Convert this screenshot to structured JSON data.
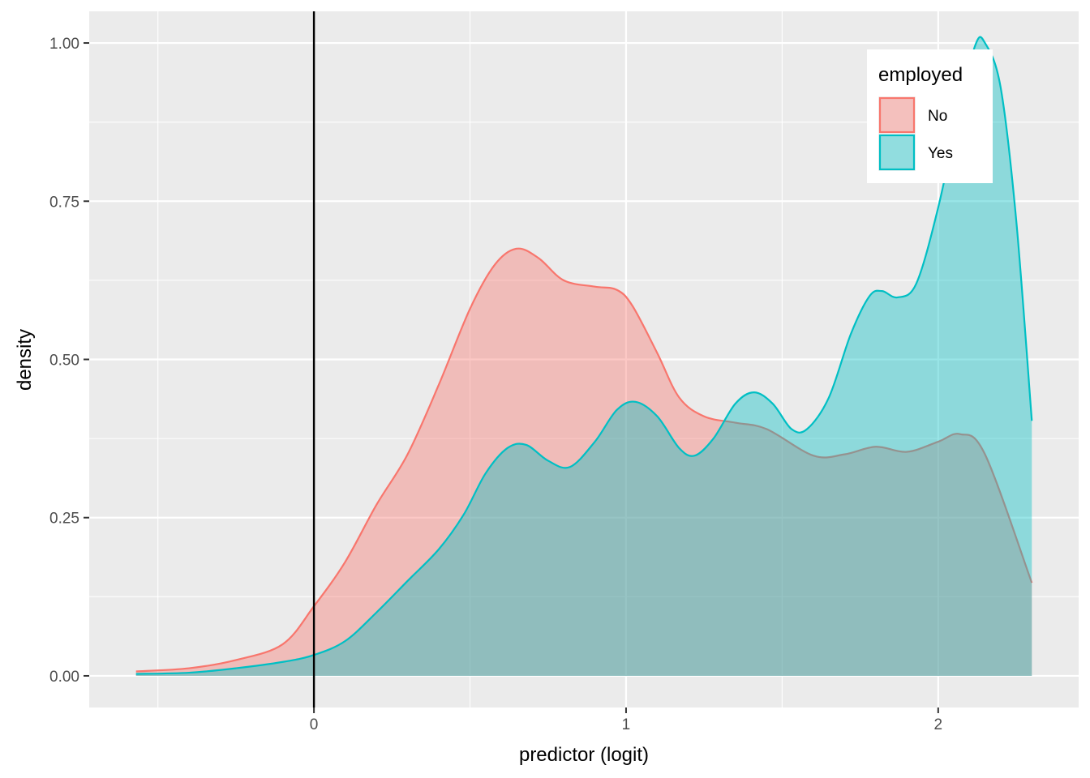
{
  "chart_data": {
    "type": "area",
    "chart_kind": "density",
    "xlabel": "predictor (logit)",
    "ylabel": "density",
    "xlim": [
      -0.72,
      2.45
    ],
    "ylim": [
      -0.05,
      1.05
    ],
    "x_ticks": [
      {
        "value": 0,
        "label": "0"
      },
      {
        "value": 1,
        "label": "1"
      },
      {
        "value": 2,
        "label": "2"
      }
    ],
    "x_minor_ticks": [
      -0.5,
      0.5,
      1.5
    ],
    "y_ticks": [
      {
        "value": 0,
        "label": "0.00"
      },
      {
        "value": 0.25,
        "label": "0.25"
      },
      {
        "value": 0.5,
        "label": "0.50"
      },
      {
        "value": 0.75,
        "label": "0.75"
      },
      {
        "value": 1.0,
        "label": "1.00"
      }
    ],
    "y_minor_ticks": [
      0.125,
      0.375,
      0.625,
      0.875
    ],
    "grid": true,
    "reference_line": {
      "x": 0,
      "color": "#000000"
    },
    "legend": {
      "title": "employed",
      "position": "top-right"
    },
    "series": [
      {
        "name": "No",
        "color": "#F8766D",
        "fill": "#F8766D",
        "fill_opacity": 0.4,
        "points": [
          [
            -0.57,
            0.007
          ],
          [
            -0.4,
            0.012
          ],
          [
            -0.25,
            0.025
          ],
          [
            -0.1,
            0.05
          ],
          [
            0,
            0.11
          ],
          [
            0.1,
            0.18
          ],
          [
            0.2,
            0.27
          ],
          [
            0.3,
            0.35
          ],
          [
            0.4,
            0.46
          ],
          [
            0.5,
            0.58
          ],
          [
            0.58,
            0.65
          ],
          [
            0.65,
            0.675
          ],
          [
            0.72,
            0.66
          ],
          [
            0.8,
            0.625
          ],
          [
            0.9,
            0.615
          ],
          [
            0.97,
            0.61
          ],
          [
            1.02,
            0.585
          ],
          [
            1.1,
            0.51
          ],
          [
            1.17,
            0.44
          ],
          [
            1.25,
            0.41
          ],
          [
            1.35,
            0.4
          ],
          [
            1.45,
            0.39
          ],
          [
            1.6,
            0.348
          ],
          [
            1.7,
            0.35
          ],
          [
            1.8,
            0.362
          ],
          [
            1.9,
            0.354
          ],
          [
            2.0,
            0.37
          ],
          [
            2.07,
            0.382
          ],
          [
            2.15,
            0.35
          ],
          [
            2.3,
            0.147
          ]
        ]
      },
      {
        "name": "Yes",
        "color": "#00BFC4",
        "fill": "#00BFC4",
        "fill_opacity": 0.4,
        "points": [
          [
            -0.57,
            0.003
          ],
          [
            -0.4,
            0.005
          ],
          [
            -0.25,
            0.012
          ],
          [
            -0.1,
            0.022
          ],
          [
            0,
            0.033
          ],
          [
            0.1,
            0.055
          ],
          [
            0.2,
            0.1
          ],
          [
            0.3,
            0.15
          ],
          [
            0.4,
            0.2
          ],
          [
            0.48,
            0.255
          ],
          [
            0.55,
            0.32
          ],
          [
            0.62,
            0.36
          ],
          [
            0.68,
            0.365
          ],
          [
            0.75,
            0.34
          ],
          [
            0.82,
            0.33
          ],
          [
            0.9,
            0.37
          ],
          [
            0.97,
            0.42
          ],
          [
            1.03,
            0.433
          ],
          [
            1.1,
            0.41
          ],
          [
            1.17,
            0.36
          ],
          [
            1.22,
            0.348
          ],
          [
            1.28,
            0.375
          ],
          [
            1.35,
            0.43
          ],
          [
            1.41,
            0.448
          ],
          [
            1.47,
            0.43
          ],
          [
            1.53,
            0.39
          ],
          [
            1.58,
            0.39
          ],
          [
            1.65,
            0.44
          ],
          [
            1.72,
            0.54
          ],
          [
            1.78,
            0.6
          ],
          [
            1.82,
            0.608
          ],
          [
            1.87,
            0.598
          ],
          [
            1.93,
            0.62
          ],
          [
            2.0,
            0.74
          ],
          [
            2.07,
            0.9
          ],
          [
            2.12,
            0.998
          ],
          [
            2.15,
            1.0
          ],
          [
            2.2,
            0.93
          ],
          [
            2.25,
            0.72
          ],
          [
            2.3,
            0.403
          ]
        ]
      }
    ]
  }
}
